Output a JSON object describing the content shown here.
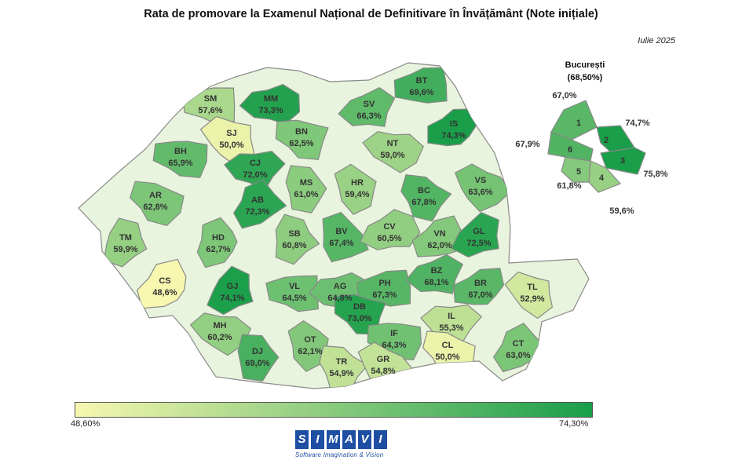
{
  "title": "Rata de promovare la Examenul Național de Definitivare în Învățământ (Note inițiale)",
  "date": "Iulie 2025",
  "colors": {
    "low": "#f7f7b0",
    "high": "#1a9e4a",
    "border": "#888888"
  },
  "legend": {
    "min": "48,60%",
    "max": "74,30%",
    "min_value": 48.6,
    "max_value": 74.3
  },
  "counties": [
    {
      "code": "SM",
      "label": "57,6%",
      "value": 57.6
    },
    {
      "code": "MM",
      "label": "73,3%",
      "value": 73.3
    },
    {
      "code": "BT",
      "label": "69,6%",
      "value": 69.6
    },
    {
      "code": "SV",
      "label": "66,3%",
      "value": 66.3
    },
    {
      "code": "IS",
      "label": "74,3%",
      "value": 74.3
    },
    {
      "code": "SJ",
      "label": "50,0%",
      "value": 50.0
    },
    {
      "code": "BN",
      "label": "62,5%",
      "value": 62.5
    },
    {
      "code": "NT",
      "label": "59,0%",
      "value": 59.0
    },
    {
      "code": "BH",
      "label": "65,9%",
      "value": 65.9
    },
    {
      "code": "CJ",
      "label": "72,0%",
      "value": 72.0
    },
    {
      "code": "MS",
      "label": "61,0%",
      "value": 61.0
    },
    {
      "code": "HR",
      "label": "59,4%",
      "value": 59.4
    },
    {
      "code": "BC",
      "label": "67,8%",
      "value": 67.8
    },
    {
      "code": "VS",
      "label": "63,6%",
      "value": 63.6
    },
    {
      "code": "AR",
      "label": "62,8%",
      "value": 62.8
    },
    {
      "code": "AB",
      "label": "72,3%",
      "value": 72.3
    },
    {
      "code": "TM",
      "label": "59,9%",
      "value": 59.9
    },
    {
      "code": "HD",
      "label": "62,7%",
      "value": 62.7
    },
    {
      "code": "SB",
      "label": "60,8%",
      "value": 60.8
    },
    {
      "code": "BV",
      "label": "67,4%",
      "value": 67.4
    },
    {
      "code": "CV",
      "label": "60,5%",
      "value": 60.5
    },
    {
      "code": "VN",
      "label": "62,0%",
      "value": 62.0
    },
    {
      "code": "GL",
      "label": "72,5%",
      "value": 72.5
    },
    {
      "code": "CS",
      "label": "48,6%",
      "value": 48.6
    },
    {
      "code": "GJ",
      "label": "74,1%",
      "value": 74.1
    },
    {
      "code": "VL",
      "label": "64,5%",
      "value": 64.5
    },
    {
      "code": "AG",
      "label": "64,8%",
      "value": 64.8
    },
    {
      "code": "PH",
      "label": "67,3%",
      "value": 67.3
    },
    {
      "code": "BZ",
      "label": "68,1%",
      "value": 68.1
    },
    {
      "code": "BR",
      "label": "67,0%",
      "value": 67.0
    },
    {
      "code": "TL",
      "label": "52,9%",
      "value": 52.9
    },
    {
      "code": "DB",
      "label": "73,0%",
      "value": 73.0
    },
    {
      "code": "MH",
      "label": "60,2%",
      "value": 60.2
    },
    {
      "code": "IF",
      "label": "64,3%",
      "value": 64.3
    },
    {
      "code": "IL",
      "label": "55,3%",
      "value": 55.3
    },
    {
      "code": "DJ",
      "label": "69,0%",
      "value": 69.0
    },
    {
      "code": "OT",
      "label": "62,1%",
      "value": 62.1
    },
    {
      "code": "TR",
      "label": "54,9%",
      "value": 54.9
    },
    {
      "code": "GR",
      "label": "54,8%",
      "value": 54.8
    },
    {
      "code": "CL",
      "label": "50,0%",
      "value": 50.0
    },
    {
      "code": "CT",
      "label": "63,0%",
      "value": 63.0
    }
  ],
  "bucharest": {
    "name": "București",
    "total": "(68,50%)",
    "sectors": [
      {
        "code": "1",
        "label": "67,0%",
        "value": 67.0
      },
      {
        "code": "2",
        "label": "74,7%",
        "value": 74.7
      },
      {
        "code": "3",
        "label": "75,8%",
        "value": 75.8
      },
      {
        "code": "4",
        "label": "59,6%",
        "value": 59.6
      },
      {
        "code": "5",
        "label": "61,8%",
        "value": 61.8
      },
      {
        "code": "6",
        "label": "67,9%",
        "value": 67.9
      }
    ]
  },
  "logo": {
    "letters": [
      "S",
      "I",
      "M",
      "A",
      "V",
      "I"
    ],
    "tagline": "Software Imagination & Vision"
  }
}
